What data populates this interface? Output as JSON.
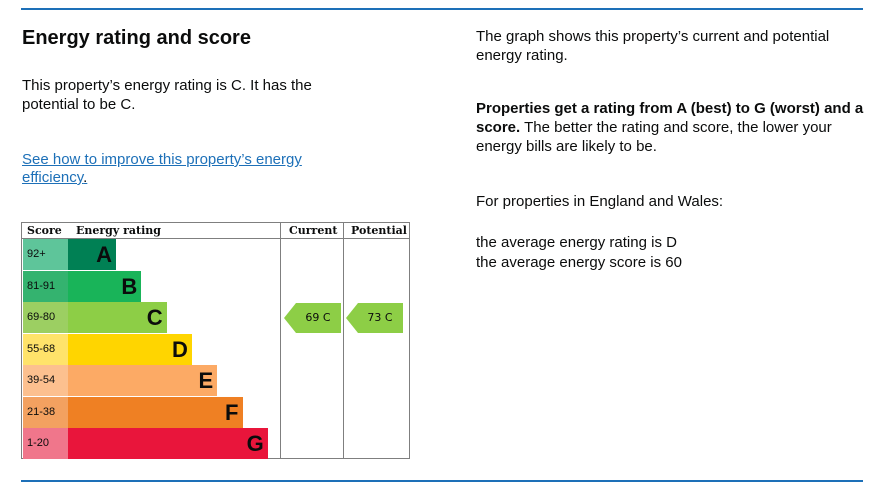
{
  "heading": "Energy rating and score",
  "intro": "This property’s energy rating is C. It has the potential to be C.",
  "improve_link": "See how to improve this property’s energy efficiency",
  "improve_link_suffix": ".",
  "right": {
    "p1": "The graph shows this property’s current and potential energy rating.",
    "p2_bold": "Properties get a rating from A (best) to G (worst) and a score.",
    "p2_rest": " The better the rating and score, the lower your energy bills are likely to be.",
    "p3": "For properties in England and Wales:",
    "avg_rating": "the average energy rating is D",
    "avg_score": "the average energy score is 60"
  },
  "graph": {
    "headers": {
      "score": "Score",
      "rating": "Energy rating",
      "current": "Current",
      "potential": "Potential"
    },
    "bands": [
      {
        "score": "92+",
        "letter": "A",
        "color": "#008054",
        "score_bg": "#5ec59a",
        "letter_color": "#0b0c0c"
      },
      {
        "score": "81-91",
        "letter": "B",
        "color": "#19b459",
        "score_bg": "#34b36f",
        "letter_color": "#0b0c0c"
      },
      {
        "score": "69-80",
        "letter": "C",
        "color": "#8dce46",
        "score_bg": "#9ccf62",
        "letter_color": "#0b0c0c"
      },
      {
        "score": "55-68",
        "letter": "D",
        "color": "#ffd500",
        "score_bg": "#ffe36a",
        "letter_color": "#0b0c0c"
      },
      {
        "score": "39-54",
        "letter": "E",
        "color": "#fcaa65",
        "score_bg": "#fcc08f",
        "letter_color": "#0b0c0c"
      },
      {
        "score": "21-38",
        "letter": "F",
        "color": "#ef8023",
        "score_bg": "#f3a160",
        "letter_color": "#0b0c0c"
      },
      {
        "score": "1-20",
        "letter": "G",
        "color": "#e9153b",
        "score_bg": "#f0768b",
        "letter_color": "#0b0c0c"
      }
    ],
    "current": {
      "label": "69 C",
      "band": 2,
      "color": "#8dce46"
    },
    "potential": {
      "label": "73 C",
      "band": 2,
      "color": "#8dce46"
    }
  }
}
